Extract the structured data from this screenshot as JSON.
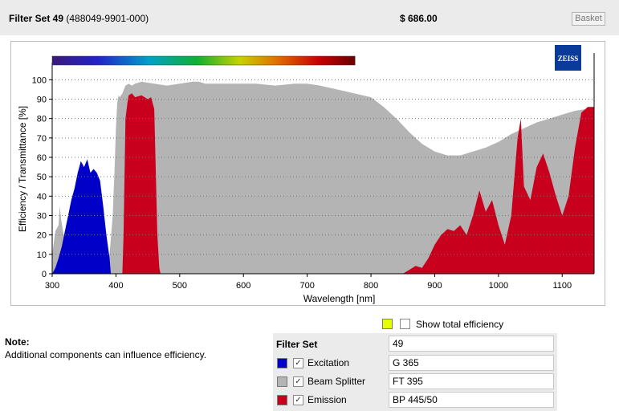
{
  "header": {
    "filter_set_bold": "Filter Set 49",
    "filter_set_code": "(488049-9901-000)",
    "price": "$ 686.00",
    "basket_label": "Basket"
  },
  "note": {
    "title": "Note:",
    "text": "Additional components can influence efficiency."
  },
  "options": {
    "total_efficiency_label": "Show total efficiency",
    "total_efficiency_checked": false,
    "total_swatch_color": "#e6ff00"
  },
  "components": {
    "header_label": "Filter Set",
    "header_value": "49",
    "rows": [
      {
        "label": "Excitation",
        "value": "G 365",
        "checked": true,
        "color": "#0000c8"
      },
      {
        "label": "Beam Splitter",
        "value": "FT 395",
        "checked": true,
        "color": "#b4b4b4"
      },
      {
        "label": "Emission",
        "value": "BP 445/50",
        "checked": true,
        "color": "#c8001e"
      }
    ]
  },
  "chart_data": {
    "type": "area",
    "xlabel": "Wavelength [nm]",
    "ylabel": "Efficiency / Transmittance [%]",
    "xlim": [
      300,
      1150
    ],
    "ylim": [
      0,
      108
    ],
    "xticks": [
      300,
      400,
      500,
      600,
      700,
      800,
      900,
      1000,
      1100
    ],
    "yticks": [
      0,
      10,
      20,
      30,
      40,
      50,
      60,
      70,
      80,
      90,
      100
    ],
    "grid": "horizontal dotted",
    "logo_text": "ZEISS",
    "spectrum_bar_nm": [
      300,
      775
    ],
    "series": [
      {
        "name": "Beam Splitter",
        "color": "#b4b4b4",
        "x": [
          300,
          305,
          310,
          312,
          314,
          318,
          322,
          328,
          334,
          340,
          350,
          360,
          370,
          380,
          390,
          395,
          398,
          400,
          402,
          404,
          406,
          410,
          415,
          420,
          425,
          430,
          440,
          460,
          480,
          500,
          520,
          530,
          540,
          560,
          580,
          600,
          620,
          650,
          680,
          700,
          720,
          760,
          800,
          820,
          840,
          860,
          880,
          900,
          920,
          940,
          960,
          980,
          1000,
          1020,
          1040,
          1060,
          1080,
          1100,
          1120,
          1140,
          1150
        ],
        "values": [
          10,
          22,
          25,
          35,
          28,
          20,
          18,
          15,
          12,
          10,
          8,
          6,
          5,
          5,
          10,
          30,
          55,
          75,
          88,
          92,
          91,
          93,
          97,
          98,
          97,
          98,
          99,
          98,
          97,
          98,
          99,
          99,
          98,
          98,
          98,
          98,
          98,
          97,
          98,
          98,
          97,
          94,
          91,
          86,
          80,
          73,
          67,
          63,
          61,
          61,
          63,
          65,
          68,
          72,
          75,
          78,
          80,
          82,
          84,
          85,
          85
        ]
      },
      {
        "name": "Excitation",
        "color": "#0000c8",
        "x": [
          300,
          305,
          310,
          315,
          320,
          325,
          330,
          335,
          340,
          345,
          350,
          355,
          360,
          365,
          370,
          375,
          380,
          385,
          390,
          392
        ],
        "values": [
          0,
          3,
          8,
          14,
          22,
          30,
          38,
          44,
          52,
          58,
          55,
          59,
          52,
          54,
          52,
          48,
          35,
          20,
          8,
          0
        ]
      },
      {
        "name": "Emission",
        "color": "#c8001e",
        "x": [
          300,
          410,
          412,
          415,
          418,
          420,
          425,
          430,
          440,
          450,
          455,
          460,
          462,
          465,
          468,
          470,
          480,
          800,
          850,
          860,
          870,
          880,
          890,
          900,
          910,
          920,
          930,
          940,
          950,
          960,
          970,
          980,
          990,
          1000,
          1010,
          1020,
          1030,
          1035,
          1040,
          1050,
          1060,
          1070,
          1080,
          1090,
          1100,
          1110,
          1120,
          1130,
          1140,
          1150
        ],
        "values": [
          0,
          0,
          20,
          80,
          88,
          92,
          93,
          91,
          92,
          90,
          91,
          85,
          60,
          20,
          3,
          0,
          0,
          0,
          0,
          2,
          4,
          3,
          8,
          15,
          20,
          23,
          22,
          25,
          20,
          30,
          43,
          32,
          38,
          25,
          15,
          30,
          70,
          80,
          45,
          38,
          55,
          62,
          52,
          40,
          30,
          40,
          65,
          83,
          86,
          86
        ]
      }
    ]
  }
}
